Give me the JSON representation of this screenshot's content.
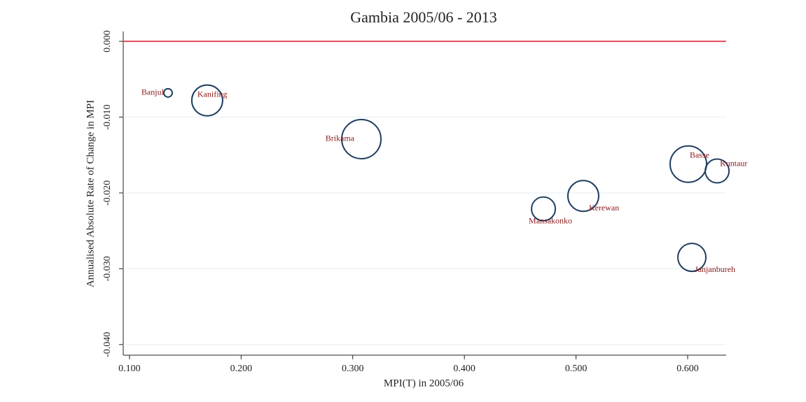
{
  "chart_data": {
    "type": "scatter",
    "title": "Gambia 2005/06 - 2013",
    "x_label": "MPI(T) in 2005/06",
    "y_label": "Annualised Absolute Rate of Change in MPI",
    "series": [
      {
        "names": [
          "Banjul",
          "Kanifing",
          "Brikama",
          "Mansakonko",
          "Kerewan",
          "Basse",
          "Kuntaur",
          "Janjanbureh"
        ],
        "x": [
          0.1345,
          0.1696,
          0.3077,
          0.4708,
          0.5065,
          0.6006,
          0.6264,
          0.6038
        ],
        "values": [
          -0.0068,
          -0.0078,
          -0.0129,
          -0.0221,
          -0.0204,
          -0.0162,
          -0.0171,
          -0.0285
        ],
        "sizes": [
          36,
          484,
          784,
          289,
          484,
          676,
          289,
          400
        ],
        "color": "#1f3f5f",
        "label_color": "#8b1a1a"
      }
    ],
    "reference_line": {
      "value": 0,
      "color": "#e8485a"
    },
    "xlim": [
      0.0944,
      0.6345
    ],
    "ylim": [
      -0.0414,
      0.0013
    ],
    "xticks": [
      {
        "value": 0.1,
        "label": "0.100"
      },
      {
        "value": 0.2,
        "label": "0.200"
      },
      {
        "value": 0.3,
        "label": "0.300"
      },
      {
        "value": 0.4,
        "label": "0.400"
      },
      {
        "value": 0.5,
        "label": "0.500"
      },
      {
        "value": 0.6,
        "label": "0.600"
      }
    ],
    "yticks": [
      {
        "value": 0,
        "label": "0.000"
      },
      {
        "value": -0.01,
        "label": "-0.010"
      },
      {
        "value": -0.02,
        "label": "-0.020"
      },
      {
        "value": -0.03,
        "label": "-0.030"
      },
      {
        "value": -0.04,
        "label": "-0.040"
      }
    ],
    "grid": true
  }
}
